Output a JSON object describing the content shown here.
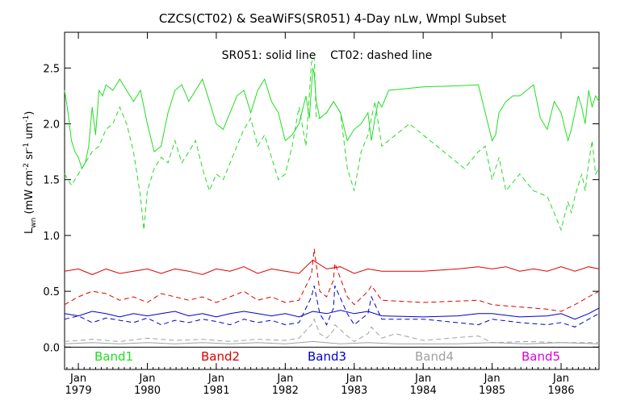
{
  "chart_data": {
    "type": "line",
    "title": "CZCS(CT02) & SeaWiFS(SR051) 4-Day nLw, Wmpl Subset",
    "annotation": "SR051: solid line    CT02: dashed line",
    "ylabel_main": "L",
    "ylabel_sub": "wn",
    "ylabel_units_parts": [
      {
        "t": "(mW cm",
        "sup": false
      },
      {
        "t": "-2",
        "sup": true
      },
      {
        "t": " sr",
        "sup": false
      },
      {
        "t": "-1",
        "sup": true
      },
      {
        "t": " um",
        "sup": false
      },
      {
        "t": "-1",
        "sup": true
      },
      {
        "t": ")",
        "sup": false
      }
    ],
    "xlim": [
      1978.8,
      1986.55
    ],
    "ylim": [
      -0.2,
      2.82
    ],
    "yticks": [
      {
        "v": 0.0,
        "label": "0.0"
      },
      {
        "v": 0.5,
        "label": "0.5"
      },
      {
        "v": 1.0,
        "label": "1.0"
      },
      {
        "v": 1.5,
        "label": "1.5"
      },
      {
        "v": 2.0,
        "label": "2.0"
      },
      {
        "v": 2.5,
        "label": "2.5"
      }
    ],
    "xticks": [
      {
        "v": 1979.0,
        "month": "Jan",
        "year": "1979"
      },
      {
        "v": 1980.0,
        "month": "Jan",
        "year": "1980"
      },
      {
        "v": 1981.0,
        "month": "Jan",
        "year": "1981"
      },
      {
        "v": 1982.0,
        "month": "Jan",
        "year": "1982"
      },
      {
        "v": 1983.0,
        "month": "Jan",
        "year": "1983"
      },
      {
        "v": 1984.0,
        "month": "Jan",
        "year": "1984"
      },
      {
        "v": 1985.0,
        "month": "Jan",
        "year": "1985"
      },
      {
        "v": 1986.0,
        "month": "Jan",
        "year": "1986"
      }
    ],
    "legend": [
      {
        "name": "Band1",
        "color": "#22dd22"
      },
      {
        "name": "Band2",
        "color": "#dd0000"
      },
      {
        "name": "Band3",
        "color": "#0000cc"
      },
      {
        "name": "Band4",
        "color": "#a0a0a0"
      },
      {
        "name": "Band5",
        "color": "#dd00dd"
      }
    ],
    "series": [
      {
        "name": "Band1",
        "style": "solid",
        "color": "#22dd22",
        "x": [
          1978.8,
          1978.85,
          1978.9,
          1978.95,
          1979.0,
          1979.05,
          1979.1,
          1979.15,
          1979.2,
          1979.25,
          1979.3,
          1979.35,
          1979.4,
          1979.5,
          1979.6,
          1979.7,
          1979.8,
          1979.9,
          1980.0,
          1980.1,
          1980.2,
          1980.3,
          1980.4,
          1980.5,
          1980.6,
          1980.7,
          1980.8,
          1980.9,
          1981.0,
          1981.1,
          1981.2,
          1981.3,
          1981.4,
          1981.5,
          1981.6,
          1981.7,
          1981.8,
          1981.9,
          1982.0,
          1982.1,
          1982.2,
          1982.3,
          1982.35,
          1982.4,
          1982.42,
          1982.45,
          1982.5,
          1982.6,
          1982.7,
          1982.8,
          1982.9,
          1983.0,
          1983.1,
          1983.2,
          1983.25,
          1983.3,
          1983.35,
          1983.4,
          1983.5,
          1984.0,
          1984.5,
          1984.8,
          1984.9,
          1985.0,
          1985.05,
          1985.1,
          1985.2,
          1985.3,
          1985.4,
          1985.6,
          1985.7,
          1985.8,
          1985.9,
          1986.0,
          1986.1,
          1986.15,
          1986.2,
          1986.25,
          1986.3,
          1986.35,
          1986.4,
          1986.45,
          1986.5,
          1986.55
        ],
        "y": [
          2.3,
          2.1,
          1.85,
          1.75,
          1.7,
          1.6,
          1.65,
          1.8,
          2.15,
          1.9,
          2.3,
          2.25,
          2.35,
          2.3,
          2.4,
          2.3,
          2.2,
          2.3,
          2.0,
          1.75,
          1.8,
          2.1,
          2.3,
          2.35,
          2.2,
          2.3,
          2.4,
          2.2,
          2.0,
          1.95,
          2.1,
          2.25,
          2.3,
          2.1,
          2.3,
          2.4,
          2.2,
          2.1,
          1.85,
          1.9,
          2.0,
          2.25,
          2.05,
          2.5,
          2.45,
          2.2,
          2.05,
          2.1,
          2.2,
          2.1,
          1.85,
          1.95,
          2.0,
          2.1,
          1.85,
          2.05,
          2.2,
          2.15,
          2.3,
          2.33,
          2.34,
          2.35,
          2.1,
          1.85,
          1.9,
          2.1,
          2.2,
          2.25,
          2.25,
          2.35,
          2.05,
          1.95,
          2.2,
          2.1,
          1.85,
          1.95,
          2.1,
          2.25,
          2.15,
          2.0,
          2.3,
          2.15,
          2.25,
          2.2
        ]
      },
      {
        "name": "Band1",
        "style": "dashed",
        "color": "#22dd22",
        "x": [
          1978.8,
          1978.9,
          1979.0,
          1979.1,
          1979.2,
          1979.3,
          1979.4,
          1979.5,
          1979.6,
          1979.7,
          1979.8,
          1979.9,
          1979.95,
          1980.0,
          1980.1,
          1980.2,
          1980.3,
          1980.4,
          1980.5,
          1980.6,
          1980.7,
          1980.8,
          1980.9,
          1981.0,
          1981.1,
          1981.2,
          1981.3,
          1981.4,
          1981.5,
          1981.6,
          1981.7,
          1981.8,
          1981.9,
          1982.0,
          1982.1,
          1982.2,
          1982.3,
          1982.38,
          1982.42,
          1982.45,
          1982.5,
          1982.6,
          1982.7,
          1982.8,
          1982.9,
          1983.0,
          1983.1,
          1983.2,
          1983.3,
          1983.4,
          1983.8,
          1984.2,
          1984.6,
          1984.8,
          1984.9,
          1985.0,
          1985.1,
          1985.2,
          1985.4,
          1985.6,
          1985.8,
          1985.9,
          1986.0,
          1986.1,
          1986.15,
          1986.2,
          1986.3,
          1986.35,
          1986.4,
          1986.45,
          1986.5,
          1986.55
        ],
        "y": [
          1.55,
          1.45,
          1.55,
          1.65,
          1.75,
          1.8,
          1.95,
          2.0,
          2.15,
          2.0,
          1.75,
          1.35,
          1.05,
          1.4,
          1.6,
          1.7,
          1.65,
          1.85,
          1.65,
          1.75,
          1.85,
          1.6,
          1.4,
          1.55,
          1.5,
          1.65,
          1.8,
          1.95,
          2.05,
          1.8,
          1.9,
          1.7,
          1.5,
          1.55,
          1.8,
          2.15,
          1.8,
          2.55,
          2.6,
          2.05,
          2.05,
          2.1,
          2.2,
          2.1,
          1.6,
          1.4,
          1.75,
          1.9,
          2.2,
          1.8,
          2.0,
          1.8,
          1.6,
          1.75,
          1.8,
          1.5,
          1.7,
          1.4,
          1.55,
          1.4,
          1.35,
          1.2,
          1.05,
          1.3,
          1.2,
          1.35,
          1.55,
          1.4,
          1.65,
          1.85,
          1.55,
          1.6
        ]
      },
      {
        "name": "Band2",
        "style": "solid",
        "color": "#dd0000",
        "x": [
          1978.8,
          1979.0,
          1979.2,
          1979.4,
          1979.6,
          1979.8,
          1980.0,
          1980.2,
          1980.4,
          1980.6,
          1980.8,
          1981.0,
          1981.2,
          1981.4,
          1981.6,
          1981.8,
          1982.0,
          1982.2,
          1982.4,
          1982.6,
          1982.8,
          1983.0,
          1983.2,
          1983.4,
          1984.0,
          1984.5,
          1984.8,
          1985.0,
          1985.2,
          1985.4,
          1985.6,
          1985.8,
          1986.0,
          1986.2,
          1986.4,
          1986.55
        ],
        "y": [
          0.68,
          0.7,
          0.65,
          0.7,
          0.66,
          0.68,
          0.7,
          0.66,
          0.7,
          0.68,
          0.65,
          0.7,
          0.68,
          0.72,
          0.66,
          0.7,
          0.68,
          0.66,
          0.78,
          0.7,
          0.72,
          0.66,
          0.7,
          0.68,
          0.68,
          0.7,
          0.72,
          0.7,
          0.72,
          0.68,
          0.7,
          0.68,
          0.72,
          0.68,
          0.72,
          0.7
        ]
      },
      {
        "name": "Band2",
        "style": "dashed",
        "color": "#dd0000",
        "x": [
          1978.8,
          1979.0,
          1979.2,
          1979.4,
          1979.6,
          1979.8,
          1980.0,
          1980.2,
          1980.4,
          1980.6,
          1980.8,
          1981.0,
          1981.2,
          1981.4,
          1981.6,
          1981.8,
          1982.0,
          1982.2,
          1982.38,
          1982.42,
          1982.5,
          1982.6,
          1982.7,
          1982.72,
          1982.9,
          1983.0,
          1983.2,
          1983.25,
          1983.4,
          1984.0,
          1984.8,
          1985.0,
          1985.4,
          1985.8,
          1986.0,
          1986.2,
          1986.4,
          1986.55
        ],
        "y": [
          0.38,
          0.45,
          0.5,
          0.48,
          0.42,
          0.45,
          0.4,
          0.48,
          0.45,
          0.42,
          0.45,
          0.4,
          0.45,
          0.5,
          0.42,
          0.45,
          0.4,
          0.42,
          0.65,
          0.88,
          0.5,
          0.45,
          0.6,
          0.75,
          0.45,
          0.38,
          0.5,
          0.55,
          0.42,
          0.4,
          0.42,
          0.38,
          0.36,
          0.34,
          0.32,
          0.38,
          0.45,
          0.5
        ]
      },
      {
        "name": "Band3",
        "style": "solid",
        "color": "#0000cc",
        "x": [
          1978.8,
          1979.0,
          1979.2,
          1979.4,
          1979.6,
          1979.8,
          1980.0,
          1980.2,
          1980.4,
          1980.6,
          1980.8,
          1981.0,
          1981.2,
          1981.4,
          1981.6,
          1981.8,
          1982.0,
          1982.2,
          1982.4,
          1982.6,
          1982.8,
          1983.0,
          1983.2,
          1983.4,
          1984.0,
          1984.5,
          1984.8,
          1985.0,
          1985.4,
          1985.8,
          1986.0,
          1986.2,
          1986.4,
          1986.55
        ],
        "y": [
          0.3,
          0.28,
          0.32,
          0.3,
          0.27,
          0.3,
          0.28,
          0.3,
          0.32,
          0.28,
          0.3,
          0.27,
          0.3,
          0.32,
          0.3,
          0.28,
          0.3,
          0.27,
          0.32,
          0.3,
          0.33,
          0.3,
          0.32,
          0.28,
          0.27,
          0.28,
          0.3,
          0.3,
          0.27,
          0.28,
          0.3,
          0.25,
          0.3,
          0.35
        ]
      },
      {
        "name": "Band3",
        "style": "dashed",
        "color": "#0000cc",
        "x": [
          1978.8,
          1979.0,
          1979.2,
          1979.4,
          1979.6,
          1979.8,
          1980.0,
          1980.2,
          1980.4,
          1980.6,
          1980.8,
          1981.0,
          1981.2,
          1981.4,
          1981.6,
          1981.8,
          1982.0,
          1982.2,
          1982.38,
          1982.42,
          1982.5,
          1982.6,
          1982.7,
          1982.72,
          1982.9,
          1983.0,
          1983.2,
          1983.25,
          1983.4,
          1984.0,
          1984.8,
          1985.0,
          1985.4,
          1985.8,
          1986.0,
          1986.2,
          1986.4,
          1986.55
        ],
        "y": [
          0.25,
          0.28,
          0.22,
          0.26,
          0.24,
          0.22,
          0.26,
          0.2,
          0.24,
          0.22,
          0.25,
          0.23,
          0.2,
          0.25,
          0.22,
          0.24,
          0.2,
          0.22,
          0.45,
          0.55,
          0.3,
          0.2,
          0.35,
          0.55,
          0.3,
          0.2,
          0.3,
          0.45,
          0.25,
          0.25,
          0.2,
          0.25,
          0.22,
          0.2,
          0.22,
          0.18,
          0.25,
          0.3
        ]
      },
      {
        "name": "Band4",
        "style": "solid",
        "color": "#a0a0a0",
        "x": [
          1978.8,
          1979.2,
          1979.6,
          1980.0,
          1980.4,
          1980.8,
          1981.2,
          1981.6,
          1982.0,
          1982.4,
          1982.8,
          1983.2,
          1983.6,
          1984.0,
          1984.5,
          1985.0,
          1985.5,
          1986.0,
          1986.55
        ],
        "y": [
          0.03,
          0.04,
          0.03,
          0.04,
          0.03,
          0.04,
          0.03,
          0.04,
          0.03,
          0.05,
          0.03,
          0.04,
          0.03,
          0.03,
          0.03,
          0.04,
          0.03,
          0.04,
          0.03
        ]
      },
      {
        "name": "Band4",
        "style": "dashed",
        "color": "#a0a0a0",
        "x": [
          1978.8,
          1979.2,
          1979.6,
          1980.0,
          1980.4,
          1980.8,
          1981.2,
          1981.6,
          1982.0,
          1982.2,
          1982.38,
          1982.42,
          1982.5,
          1982.6,
          1982.7,
          1982.72,
          1982.9,
          1983.0,
          1983.2,
          1983.25,
          1983.4,
          1983.6,
          1984.0,
          1984.4,
          1984.8,
          1985.0,
          1985.5,
          1986.0,
          1986.55
        ],
        "y": [
          0.05,
          0.07,
          0.05,
          0.08,
          0.06,
          0.07,
          0.05,
          0.07,
          0.06,
          0.08,
          0.2,
          0.25,
          0.12,
          0.08,
          0.15,
          0.2,
          0.1,
          0.05,
          0.12,
          0.18,
          0.08,
          0.12,
          0.06,
          0.08,
          0.1,
          0.04,
          0.05,
          0.04,
          0.04
        ]
      }
    ]
  }
}
